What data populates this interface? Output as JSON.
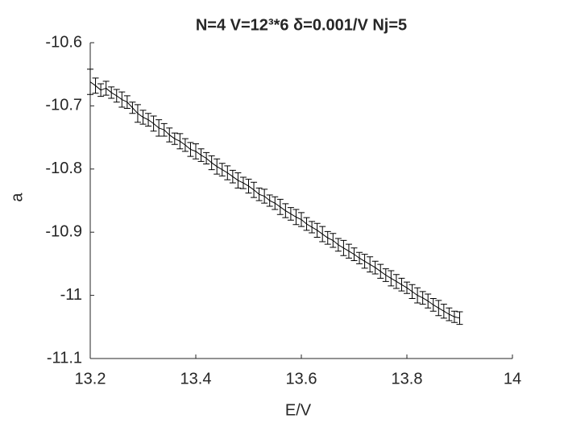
{
  "chart_data": {
    "type": "errorbar",
    "title": "N=4 V=12³*6 δ=0.001/V Nj=5",
    "xlabel": "E/V",
    "ylabel": "a",
    "color": "#000000",
    "xlim": [
      13.2,
      14
    ],
    "xticks": [
      13.2,
      13.4,
      13.6,
      13.8,
      14
    ],
    "ylim": [
      -11.1,
      -10.6
    ],
    "yticks": [
      -11.1,
      -11,
      -10.9,
      -10.8,
      -10.7,
      -10.6
    ],
    "x": [
      13.2,
      13.21,
      13.22,
      13.23,
      13.24,
      13.25,
      13.26,
      13.27,
      13.28,
      13.29,
      13.3,
      13.31,
      13.32,
      13.33,
      13.34,
      13.35,
      13.36,
      13.37,
      13.38,
      13.39,
      13.4,
      13.41,
      13.42,
      13.43,
      13.44,
      13.45,
      13.46,
      13.47,
      13.48,
      13.49,
      13.5,
      13.51,
      13.52,
      13.53,
      13.54,
      13.55,
      13.56,
      13.57,
      13.58,
      13.59,
      13.6,
      13.61,
      13.62,
      13.63,
      13.64,
      13.65,
      13.66,
      13.67,
      13.68,
      13.69,
      13.7,
      13.71,
      13.72,
      13.73,
      13.74,
      13.75,
      13.76,
      13.77,
      13.78,
      13.79,
      13.8,
      13.81,
      13.82,
      13.83,
      13.84,
      13.85,
      13.86,
      13.87,
      13.88,
      13.89,
      13.9
    ],
    "values": [
      -10.662,
      -10.668,
      -10.675,
      -10.672,
      -10.679,
      -10.684,
      -10.69,
      -10.694,
      -10.703,
      -10.712,
      -10.718,
      -10.722,
      -10.728,
      -10.735,
      -10.738,
      -10.746,
      -10.752,
      -10.756,
      -10.762,
      -10.769,
      -10.772,
      -10.778,
      -10.783,
      -10.79,
      -10.796,
      -10.801,
      -10.806,
      -10.812,
      -10.818,
      -10.822,
      -10.827,
      -10.833,
      -10.84,
      -10.843,
      -10.85,
      -10.854,
      -10.86,
      -10.866,
      -10.871,
      -10.876,
      -10.88,
      -10.887,
      -10.892,
      -10.897,
      -10.903,
      -10.909,
      -10.913,
      -10.92,
      -10.925,
      -10.93,
      -10.935,
      -10.941,
      -10.946,
      -10.951,
      -10.956,
      -10.962,
      -10.968,
      -10.973,
      -10.978,
      -10.983,
      -10.988,
      -10.994,
      -11,
      -11.004,
      -11.009,
      -11.015,
      -11.02,
      -11.025,
      -11.03,
      -11.034,
      -11.036
    ],
    "errors": [
      0.02,
      0.012,
      0.01,
      0.011,
      0.009,
      0.01,
      0.012,
      0.01,
      0.009,
      0.014,
      0.011,
      0.01,
      0.012,
      0.013,
      0.01,
      0.011,
      0.009,
      0.012,
      0.01,
      0.011,
      0.012,
      0.01,
      0.009,
      0.011,
      0.012,
      0.01,
      0.011,
      0.01,
      0.012,
      0.009,
      0.011,
      0.012,
      0.01,
      0.011,
      0.009,
      0.01,
      0.012,
      0.011,
      0.01,
      0.012,
      0.011,
      0.01,
      0.009,
      0.011,
      0.012,
      0.01,
      0.011,
      0.01,
      0.012,
      0.011,
      0.01,
      0.009,
      0.011,
      0.012,
      0.01,
      0.011,
      0.01,
      0.012,
      0.011,
      0.01,
      0.009,
      0.011,
      0.012,
      0.01,
      0.011,
      0.01,
      0.012,
      0.011,
      0.01,
      0.009,
      0.01
    ]
  }
}
